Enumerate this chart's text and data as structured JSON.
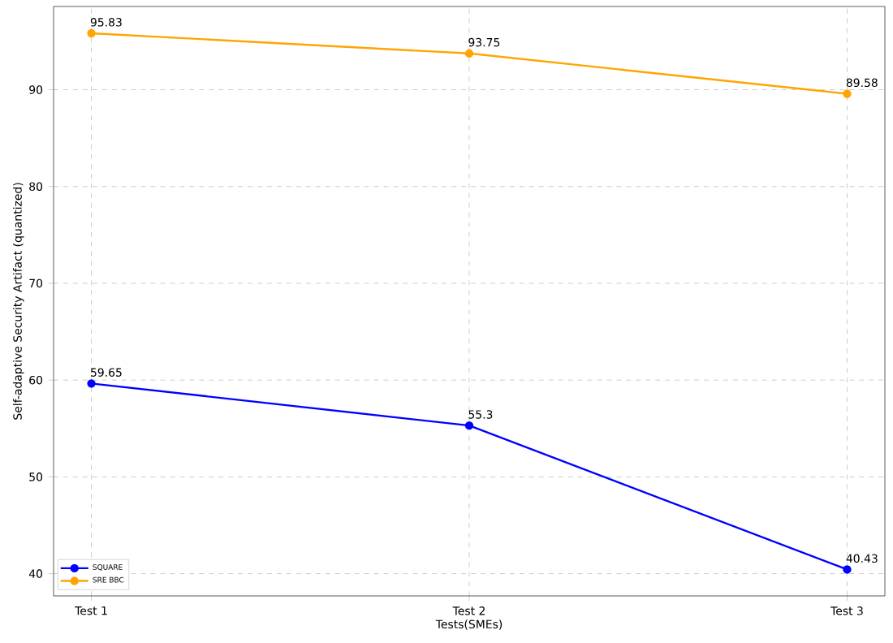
{
  "chart_data": {
    "type": "line",
    "xlabel": "Tests(SMEs)",
    "ylabel": "Self-adaptive Security Artifact (quantized)",
    "categories": [
      "Test 1",
      "Test 2",
      "Test 3"
    ],
    "series": [
      {
        "name": "SQUARE",
        "color": "#0000ff",
        "values": [
          59.65,
          55.3,
          40.43
        ]
      },
      {
        "name": "SRE BBC",
        "color": "#ffa500",
        "values": [
          95.83,
          93.75,
          89.58
        ]
      }
    ],
    "ylim": [
      37.7,
      98.6
    ],
    "yticks": [
      40,
      50,
      60,
      70,
      80,
      90
    ],
    "grid": true,
    "legend": "bottom left",
    "marker": "circle",
    "line_style": "solid",
    "data_labels": true
  }
}
